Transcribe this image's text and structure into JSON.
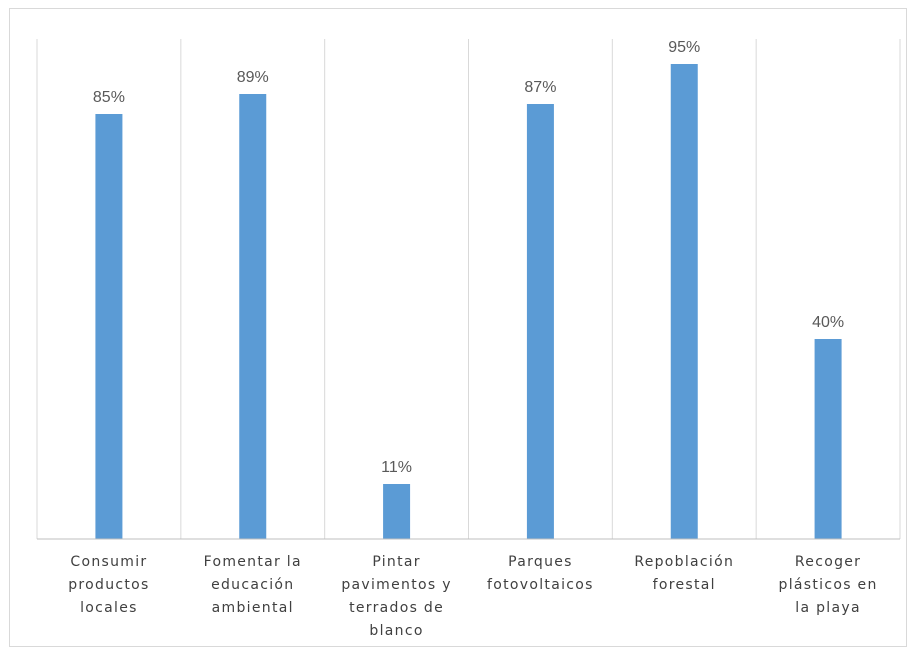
{
  "chart_data": {
    "type": "bar",
    "title": "",
    "xlabel": "",
    "ylabel": "",
    "ylim": [
      0,
      100
    ],
    "value_suffix": "%",
    "grid": "vertical separators between categories",
    "legend": "none",
    "colors": {
      "bar": "#5b9bd5",
      "separator": "#d9d9d9",
      "axis": "#bfbfbf",
      "label": "#595959"
    },
    "categories": [
      [
        "Consumir",
        "productos",
        "locales"
      ],
      [
        "Fomentar la",
        "educación",
        "ambiental"
      ],
      [
        "Pintar",
        "pavimentos y",
        "terrados de",
        "blanco"
      ],
      [
        "Parques",
        "fotovoltaicos"
      ],
      [
        "Repoblación",
        "forestal"
      ],
      [
        "Recoger",
        "plásticos en",
        "la playa"
      ]
    ],
    "series": [
      {
        "values": [
          85,
          89,
          11,
          87,
          95,
          40
        ]
      }
    ],
    "data_labels": [
      "85%",
      "89%",
      "11%",
      "87%",
      "95%",
      "40%"
    ]
  }
}
